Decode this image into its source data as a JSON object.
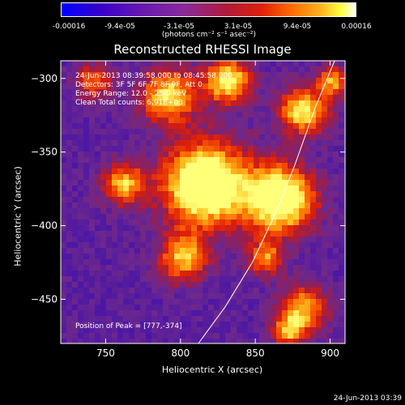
{
  "colorbar": {
    "ticks": [
      "-0.00016",
      "-9.4e-05",
      "-3.1e-05",
      "3.1e-05",
      "9.4e-05",
      "0.00016"
    ],
    "units": "(photons cm⁻² s⁻¹ asec⁻²)"
  },
  "title": "Reconstructed RHESSI Image",
  "annotations": {
    "time": "24-Jun-2013 08:39:58.000 to 08:45:58.000",
    "detectors": "Detectors: 3F 5F 6F 7F 8F 9F, Att 0",
    "energy": "Energy Range: 12.0 - 25.0 keV",
    "clean": "Clean    Total counts: 6.91E+03",
    "peak": "Position of Peak = [777,-374]"
  },
  "footer": "24-Jun-2013 03:39",
  "chart_data": {
    "type": "heatmap",
    "title": "Reconstructed RHESSI Image",
    "xlabel": "Heliocentric X (arcsec)",
    "ylabel": "Heliocentric Y (arcsec)",
    "xlim": [
      720,
      910
    ],
    "ylim": [
      -480,
      -288
    ],
    "xticks": [
      750,
      800,
      850,
      900
    ],
    "yticks": [
      -300,
      -350,
      -400,
      -450
    ],
    "colorscale_range": [
      -0.00016,
      0.00016
    ],
    "peak_position": [
      777,
      -374
    ],
    "limb_curve": [
      [
        812,
        -480
      ],
      [
        830,
        -455
      ],
      [
        848,
        -425
      ],
      [
        862,
        -395
      ],
      [
        876,
        -360
      ],
      [
        890,
        -320
      ],
      [
        903,
        -288
      ]
    ]
  }
}
